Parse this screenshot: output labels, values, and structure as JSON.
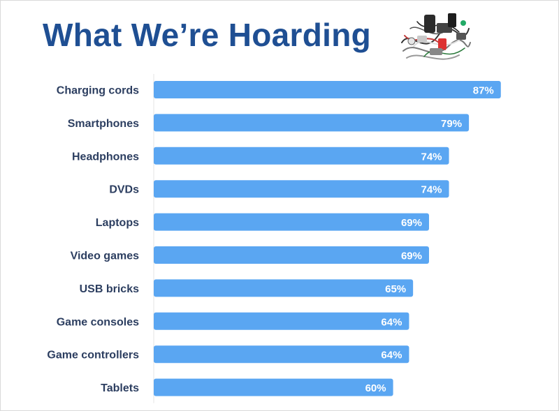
{
  "title": "What We’re Hoarding",
  "image_icon": "tangled-electronics-pile",
  "colors": {
    "bar": "#5aa6f2",
    "title": "#1f4f93",
    "label": "#2c3e60"
  },
  "chart_data": {
    "type": "bar",
    "orientation": "horizontal",
    "title": "What We’re Hoarding",
    "categories": [
      "Charging cords",
      "Smartphones",
      "Headphones",
      "DVDs",
      "Laptops",
      "Video games",
      "USB bricks",
      "Game consoles",
      "Game controllers",
      "Tablets"
    ],
    "values": [
      87,
      79,
      74,
      74,
      69,
      69,
      65,
      64,
      64,
      60
    ],
    "value_labels": [
      "87%",
      "79%",
      "74%",
      "74%",
      "69%",
      "69%",
      "65%",
      "64%",
      "64%",
      "60%"
    ],
    "unit": "%",
    "xlim": [
      0,
      100
    ],
    "grid": false,
    "legend": "none"
  }
}
